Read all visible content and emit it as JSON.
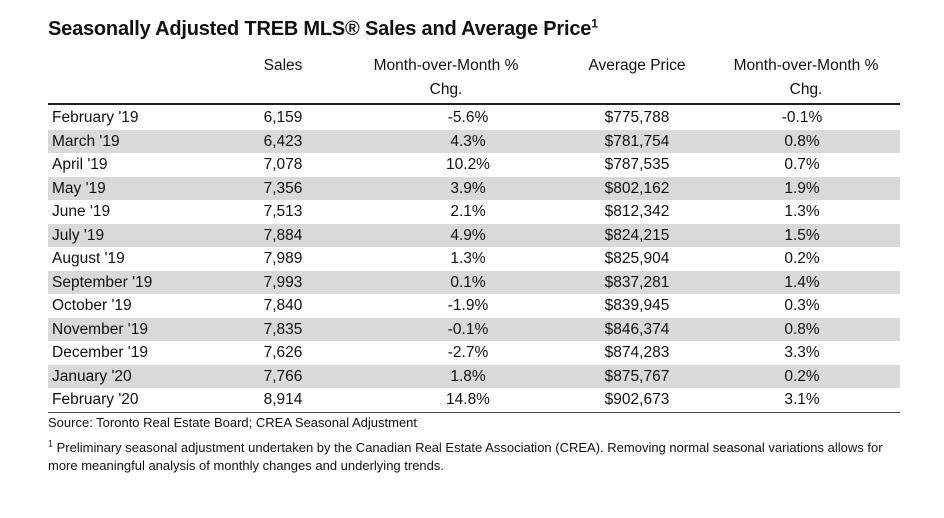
{
  "title": {
    "text": "Seasonally Adjusted TREB MLS® Sales and Average Price",
    "superscript": "1"
  },
  "headers": {
    "sales": "Sales",
    "mom_sales_line1": "Month-over-Month %",
    "mom_sales_line2": "Chg.",
    "avg_price": "Average Price",
    "mom_price_line1": "Month-over-Month %",
    "mom_price_line2": "Chg."
  },
  "rows": [
    {
      "month": "February '19",
      "sales": "6,159",
      "sales_chg": "-5.6%",
      "avg_price": "$775,788",
      "price_chg": "-0.1%"
    },
    {
      "month": "March '19",
      "sales": "6,423",
      "sales_chg": "4.3%",
      "avg_price": "$781,754",
      "price_chg": "0.8%"
    },
    {
      "month": "April '19",
      "sales": "7,078",
      "sales_chg": "10.2%",
      "avg_price": "$787,535",
      "price_chg": "0.7%"
    },
    {
      "month": "May '19",
      "sales": "7,356",
      "sales_chg": "3.9%",
      "avg_price": "$802,162",
      "price_chg": "1.9%"
    },
    {
      "month": "June '19",
      "sales": "7,513",
      "sales_chg": "2.1%",
      "avg_price": "$812,342",
      "price_chg": "1.3%"
    },
    {
      "month": "July '19",
      "sales": "7,884",
      "sales_chg": "4.9%",
      "avg_price": "$824,215",
      "price_chg": "1.5%"
    },
    {
      "month": "August '19",
      "sales": "7,989",
      "sales_chg": "1.3%",
      "avg_price": "$825,904",
      "price_chg": "0.2%"
    },
    {
      "month": "September '19",
      "sales": "7,993",
      "sales_chg": "0.1%",
      "avg_price": "$837,281",
      "price_chg": "1.4%"
    },
    {
      "month": "October '19",
      "sales": "7,840",
      "sales_chg": "-1.9%",
      "avg_price": "$839,945",
      "price_chg": "0.3%"
    },
    {
      "month": "November '19",
      "sales": "7,835",
      "sales_chg": "-0.1%",
      "avg_price": "$846,374",
      "price_chg": "0.8%"
    },
    {
      "month": "December '19",
      "sales": "7,626",
      "sales_chg": "-2.7%",
      "avg_price": "$874,283",
      "price_chg": "3.3%"
    },
    {
      "month": "January '20",
      "sales": "7,766",
      "sales_chg": "1.8%",
      "avg_price": "$875,767",
      "price_chg": "0.2%"
    },
    {
      "month": "February '20",
      "sales": "8,914",
      "sales_chg": "14.8%",
      "avg_price": "$902,673",
      "price_chg": "3.1%"
    }
  ],
  "source": "Source: Toronto Real Estate Board; CREA Seasonal Adjustment",
  "footnote": {
    "marker": "1",
    "text": "Preliminary seasonal adjustment undertaken by the Canadian Real Estate Association (CREA).  Removing normal seasonal variations allows for more meaningful analysis of monthly changes and underlying trends."
  },
  "colors": {
    "row_shade": "#d9d9d9",
    "background": "#ffffff",
    "text": "#111111"
  }
}
